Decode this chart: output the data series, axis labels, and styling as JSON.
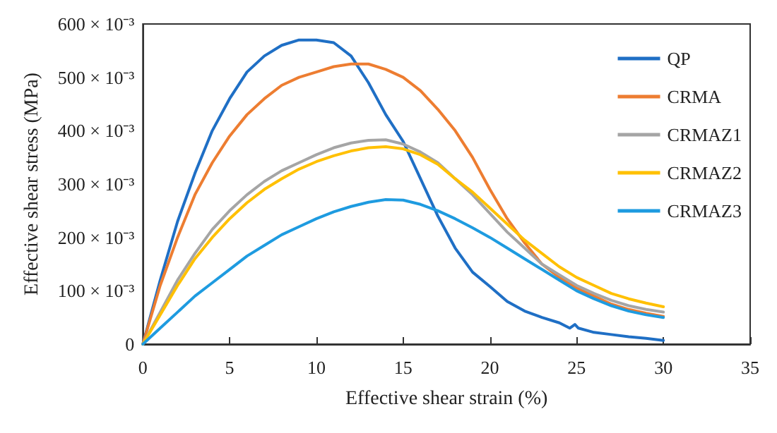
{
  "chart_data": {
    "type": "line",
    "xlabel": "Effective shear strain (%)",
    "ylabel": "Effective shear stress (MPa)",
    "x": [
      0,
      1,
      2,
      3,
      4,
      5,
      6,
      7,
      8,
      9,
      10,
      11,
      12,
      13,
      14,
      15,
      16,
      17,
      18,
      19,
      20,
      21,
      22,
      23,
      24,
      25,
      26,
      27,
      28,
      29,
      30
    ],
    "xlim": [
      0,
      35
    ],
    "xticks": [
      0,
      5,
      10,
      15,
      20,
      25,
      30,
      35
    ],
    "ylim": [
      0,
      0.6
    ],
    "yticks": [
      0,
      {
        "value": 0.1,
        "label": "100 × 10⁻³"
      },
      {
        "value": 0.2,
        "label": "200 × 10⁻³"
      },
      {
        "value": 0.3,
        "label": "300 × 10⁻³"
      },
      {
        "value": 0.4,
        "label": "400 × 10⁻³"
      },
      {
        "value": 0.5,
        "label": "500 × 10⁻³"
      },
      {
        "value": 0.6,
        "label": "600 × 10⁻³"
      }
    ],
    "grid": false,
    "legend": "top right",
    "marker": "none",
    "line_style": "solid",
    "series": [
      {
        "name": "QP",
        "color": "#1f6fc5",
        "x": [
          0,
          1,
          2,
          3,
          4,
          5,
          6,
          7,
          8,
          9,
          10,
          11,
          12,
          13,
          14,
          15,
          16,
          17,
          18,
          19,
          20,
          21,
          22,
          23,
          24,
          24.6,
          24.9,
          25.1,
          26,
          27,
          28,
          29,
          30
        ],
        "values": [
          0,
          0.12,
          0.23,
          0.32,
          0.4,
          0.46,
          0.51,
          0.54,
          0.56,
          0.57,
          0.57,
          0.565,
          0.54,
          0.49,
          0.43,
          0.38,
          0.31,
          0.24,
          0.18,
          0.135,
          0.108,
          0.08,
          0.062,
          0.05,
          0.04,
          0.03,
          0.037,
          0.03,
          0.022,
          0.018,
          0.014,
          0.011,
          0.007
        ]
      },
      {
        "name": "CRMA",
        "color": "#ed7d31",
        "values": [
          0,
          0.11,
          0.2,
          0.28,
          0.34,
          0.39,
          0.43,
          0.46,
          0.485,
          0.5,
          0.51,
          0.52,
          0.525,
          0.525,
          0.515,
          0.5,
          0.475,
          0.44,
          0.4,
          0.35,
          0.29,
          0.235,
          0.19,
          0.15,
          0.125,
          0.105,
          0.09,
          0.075,
          0.065,
          0.058,
          0.052
        ]
      },
      {
        "name": "CRMAZ1",
        "color": "#a5a5a5",
        "values": [
          0,
          0.06,
          0.12,
          0.17,
          0.215,
          0.25,
          0.28,
          0.305,
          0.325,
          0.34,
          0.355,
          0.368,
          0.377,
          0.382,
          0.383,
          0.375,
          0.36,
          0.34,
          0.31,
          0.28,
          0.245,
          0.21,
          0.18,
          0.15,
          0.13,
          0.11,
          0.095,
          0.082,
          0.072,
          0.065,
          0.06
        ]
      },
      {
        "name": "CRMAZ2",
        "color": "#ffc000",
        "values": [
          0,
          0.055,
          0.11,
          0.16,
          0.2,
          0.235,
          0.265,
          0.29,
          0.31,
          0.328,
          0.342,
          0.353,
          0.362,
          0.368,
          0.37,
          0.366,
          0.355,
          0.337,
          0.31,
          0.285,
          0.255,
          0.225,
          0.195,
          0.17,
          0.145,
          0.125,
          0.11,
          0.095,
          0.085,
          0.077,
          0.07
        ]
      },
      {
        "name": "CRMAZ3",
        "color": "#1e9be0",
        "values": [
          0,
          0.03,
          0.06,
          0.09,
          0.115,
          0.14,
          0.165,
          0.185,
          0.205,
          0.22,
          0.235,
          0.248,
          0.258,
          0.266,
          0.271,
          0.27,
          0.262,
          0.25,
          0.235,
          0.218,
          0.2,
          0.18,
          0.16,
          0.14,
          0.12,
          0.1,
          0.085,
          0.072,
          0.062,
          0.055,
          0.05
        ]
      }
    ]
  }
}
